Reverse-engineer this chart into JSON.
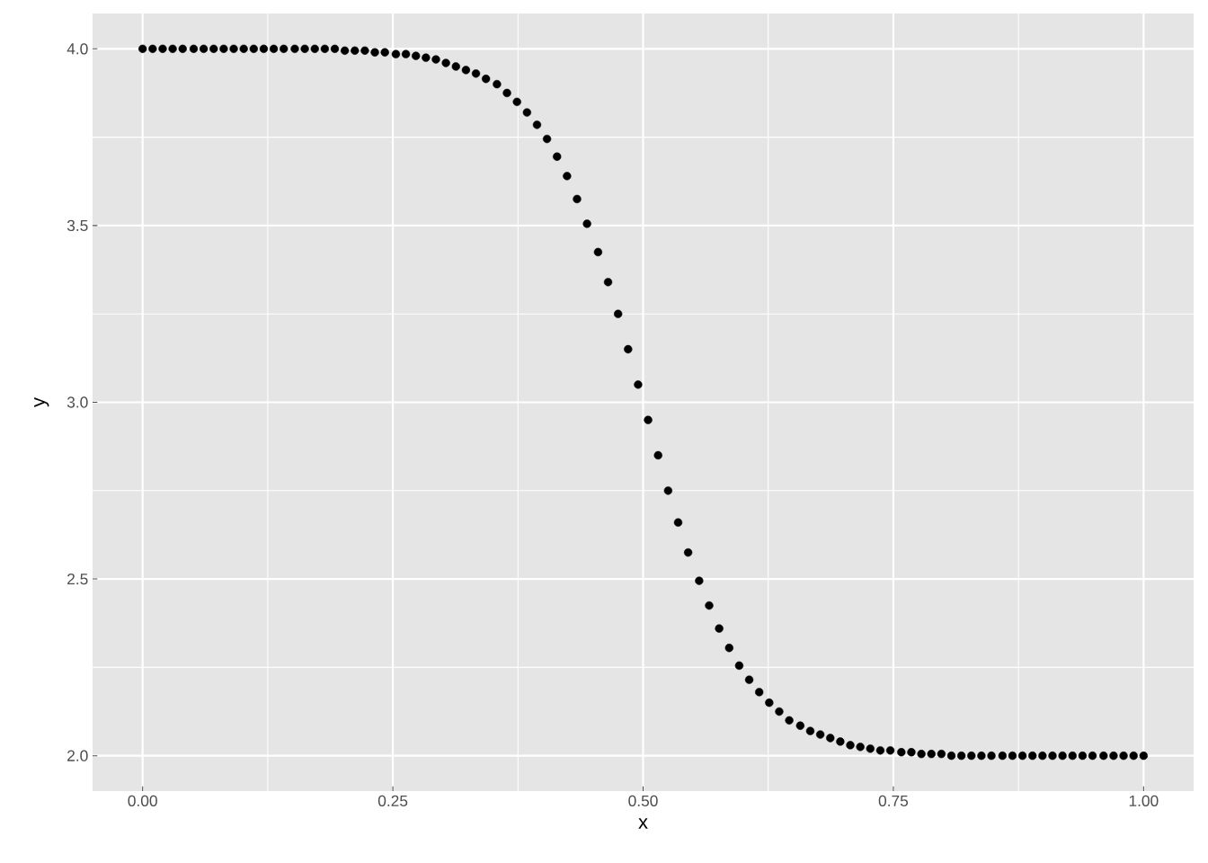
{
  "chart_data": {
    "type": "scatter",
    "xlabel": "x",
    "ylabel": "y",
    "x": [
      0,
      0.01,
      0.02,
      0.03,
      0.04,
      0.051,
      0.061,
      0.071,
      0.081,
      0.091,
      0.101,
      0.111,
      0.121,
      0.131,
      0.141,
      0.152,
      0.162,
      0.172,
      0.182,
      0.192,
      0.202,
      0.212,
      0.222,
      0.232,
      0.242,
      0.253,
      0.263,
      0.273,
      0.283,
      0.293,
      0.303,
      0.313,
      0.323,
      0.333,
      0.343,
      0.354,
      0.364,
      0.374,
      0.384,
      0.394,
      0.404,
      0.414,
      0.424,
      0.434,
      0.444,
      0.455,
      0.465,
      0.475,
      0.485,
      0.495,
      0.505,
      0.515,
      0.525,
      0.535,
      0.545,
      0.556,
      0.566,
      0.576,
      0.586,
      0.596,
      0.606,
      0.616,
      0.626,
      0.636,
      0.646,
      0.657,
      0.667,
      0.677,
      0.687,
      0.697,
      0.707,
      0.717,
      0.727,
      0.737,
      0.747,
      0.758,
      0.768,
      0.778,
      0.788,
      0.798,
      0.808,
      0.818,
      0.828,
      0.838,
      0.848,
      0.859,
      0.869,
      0.879,
      0.889,
      0.899,
      0.909,
      0.919,
      0.929,
      0.939,
      0.949,
      0.96,
      0.97,
      0.98,
      0.99,
      1
    ],
    "values": [
      4.0,
      4.0,
      4.0,
      4.0,
      4.0,
      4.0,
      4.0,
      4.0,
      4.0,
      4.0,
      4.0,
      4.0,
      4.0,
      4.0,
      4.0,
      4.0,
      4.0,
      4.0,
      4.0,
      4.0,
      3.995,
      3.995,
      3.995,
      3.99,
      3.99,
      3.985,
      3.985,
      3.98,
      3.975,
      3.97,
      3.96,
      3.95,
      3.94,
      3.93,
      3.915,
      3.9,
      3.875,
      3.85,
      3.82,
      3.785,
      3.745,
      3.695,
      3.64,
      3.575,
      3.505,
      3.425,
      3.34,
      3.25,
      3.15,
      3.05,
      2.95,
      2.85,
      2.75,
      2.66,
      2.575,
      2.495,
      2.425,
      2.36,
      2.305,
      2.255,
      2.215,
      2.18,
      2.15,
      2.125,
      2.1,
      2.085,
      2.07,
      2.06,
      2.05,
      2.04,
      2.03,
      2.025,
      2.02,
      2.015,
      2.015,
      2.01,
      2.01,
      2.005,
      2.005,
      2.005,
      2.0,
      2.0,
      2.0,
      2.0,
      2.0,
      2.0,
      2.0,
      2.0,
      2.0,
      2.0,
      2.0,
      2.0,
      2.0,
      2.0,
      2.0,
      2.0,
      2.0,
      2.0,
      2.0,
      2.0
    ],
    "color": "#000000",
    "marker": "circle",
    "grid": true,
    "xlim": [
      -0.05,
      1.05
    ],
    "ylim": [
      1.9,
      4.1
    ],
    "xticks": [
      {
        "value": 0,
        "label": "0.00"
      },
      {
        "value": 0.25,
        "label": "0.25"
      },
      {
        "value": 0.5,
        "label": "0.50"
      },
      {
        "value": 0.75,
        "label": "0.75"
      },
      {
        "value": 1,
        "label": "1.00"
      }
    ],
    "yticks": [
      {
        "value": 2,
        "label": "2.0"
      },
      {
        "value": 2.5,
        "label": "2.5"
      },
      {
        "value": 3,
        "label": "3.0"
      },
      {
        "value": 3.5,
        "label": "3.5"
      },
      {
        "value": 4,
        "label": "4.0"
      }
    ]
  }
}
